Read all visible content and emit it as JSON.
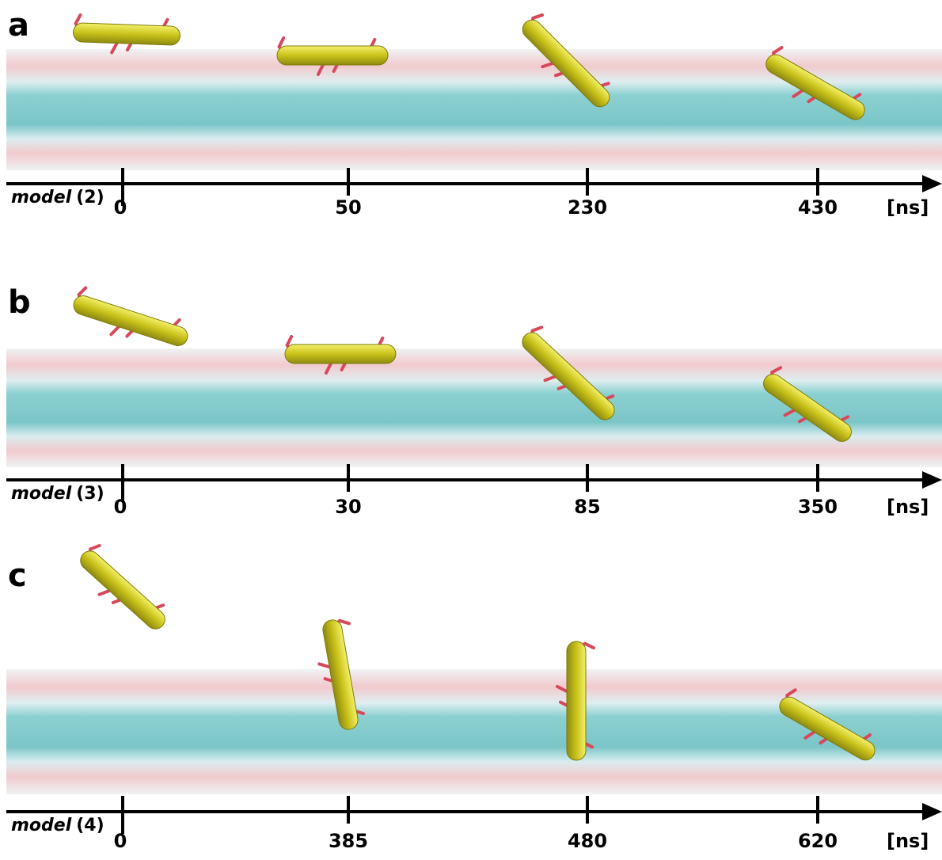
{
  "panels": [
    {
      "label": "a",
      "model": "model",
      "model_number": "(2)",
      "times": [
        0,
        50,
        230,
        430
      ],
      "unit": "[ns]"
    },
    {
      "label": "b",
      "model": "model",
      "model_number": "(3)",
      "times": [
        0,
        30,
        85,
        350
      ],
      "unit": "[ns]"
    },
    {
      "label": "c",
      "model": "model",
      "model_number": "(4)",
      "times": [
        0,
        385,
        480,
        620
      ],
      "unit": "[ns]"
    }
  ]
}
